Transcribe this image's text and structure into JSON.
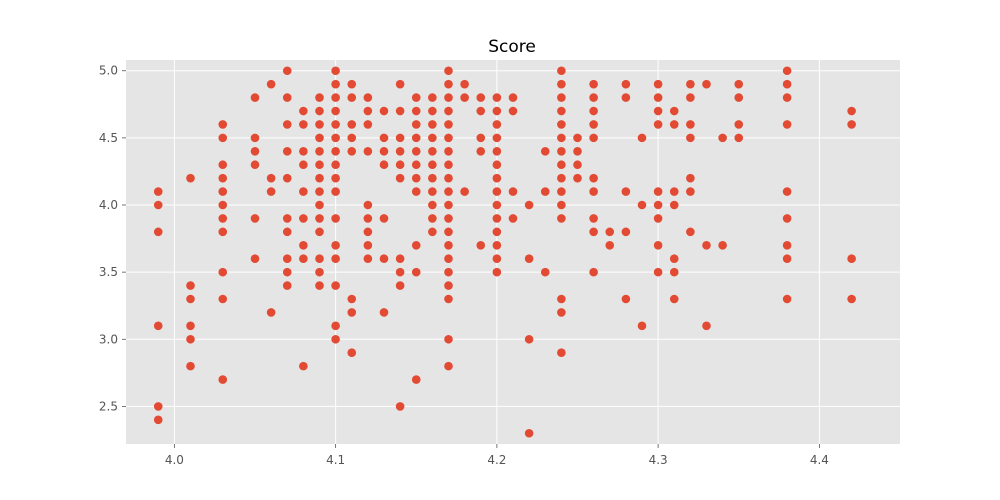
{
  "chart_data": {
    "type": "scatter",
    "title": "Score",
    "xlabel": "",
    "ylabel": "",
    "xlim": [
      3.97,
      4.45
    ],
    "ylim": [
      2.22,
      5.08
    ],
    "xticks": [
      4.0,
      4.1,
      4.2,
      4.3,
      4.4
    ],
    "xtick_labels": [
      "4.0",
      "4.1",
      "4.2",
      "4.3",
      "4.4"
    ],
    "yticks": [
      2.5,
      3.0,
      3.5,
      4.0,
      4.5,
      5.0
    ],
    "ytick_labels": [
      "2.5",
      "3.0",
      "3.5",
      "4.0",
      "4.5",
      "5.0"
    ],
    "grid": true,
    "style": "ggplot",
    "colors": {
      "marker": "#E24A33",
      "background": "#E5E5E5",
      "grid": "#FFFFFF"
    },
    "points": [
      [
        3.99,
        4.1
      ],
      [
        3.99,
        4.0
      ],
      [
        3.99,
        3.8
      ],
      [
        3.99,
        3.1
      ],
      [
        3.99,
        2.5
      ],
      [
        3.99,
        2.4
      ],
      [
        4.01,
        4.2
      ],
      [
        4.01,
        3.4
      ],
      [
        4.01,
        3.3
      ],
      [
        4.01,
        3.1
      ],
      [
        4.01,
        3.0
      ],
      [
        4.01,
        2.8
      ],
      [
        4.03,
        4.6
      ],
      [
        4.03,
        4.5
      ],
      [
        4.03,
        4.3
      ],
      [
        4.03,
        4.2
      ],
      [
        4.03,
        4.1
      ],
      [
        4.03,
        4.0
      ],
      [
        4.03,
        3.9
      ],
      [
        4.03,
        3.8
      ],
      [
        4.03,
        3.5
      ],
      [
        4.03,
        3.3
      ],
      [
        4.03,
        2.7
      ],
      [
        4.05,
        4.8
      ],
      [
        4.05,
        4.5
      ],
      [
        4.05,
        4.4
      ],
      [
        4.05,
        4.3
      ],
      [
        4.05,
        3.9
      ],
      [
        4.05,
        3.6
      ],
      [
        4.06,
        4.9
      ],
      [
        4.06,
        4.2
      ],
      [
        4.06,
        4.1
      ],
      [
        4.06,
        3.2
      ],
      [
        4.07,
        5.0
      ],
      [
        4.07,
        4.8
      ],
      [
        4.07,
        4.6
      ],
      [
        4.07,
        4.4
      ],
      [
        4.07,
        4.2
      ],
      [
        4.07,
        3.9
      ],
      [
        4.07,
        3.8
      ],
      [
        4.07,
        3.6
      ],
      [
        4.07,
        3.5
      ],
      [
        4.07,
        3.4
      ],
      [
        4.08,
        4.7
      ],
      [
        4.08,
        4.6
      ],
      [
        4.08,
        4.4
      ],
      [
        4.08,
        4.3
      ],
      [
        4.08,
        4.1
      ],
      [
        4.08,
        3.9
      ],
      [
        4.08,
        3.7
      ],
      [
        4.08,
        3.6
      ],
      [
        4.08,
        2.8
      ],
      [
        4.09,
        4.8
      ],
      [
        4.09,
        4.7
      ],
      [
        4.09,
        4.6
      ],
      [
        4.09,
        4.5
      ],
      [
        4.09,
        4.4
      ],
      [
        4.09,
        4.3
      ],
      [
        4.09,
        4.2
      ],
      [
        4.09,
        4.1
      ],
      [
        4.09,
        4.0
      ],
      [
        4.09,
        3.9
      ],
      [
        4.09,
        3.8
      ],
      [
        4.09,
        3.6
      ],
      [
        4.09,
        3.5
      ],
      [
        4.09,
        3.4
      ],
      [
        4.1,
        5.0
      ],
      [
        4.1,
        4.9
      ],
      [
        4.1,
        4.8
      ],
      [
        4.1,
        4.7
      ],
      [
        4.1,
        4.6
      ],
      [
        4.1,
        4.5
      ],
      [
        4.1,
        4.4
      ],
      [
        4.1,
        4.3
      ],
      [
        4.1,
        4.2
      ],
      [
        4.1,
        4.1
      ],
      [
        4.1,
        3.9
      ],
      [
        4.1,
        3.7
      ],
      [
        4.1,
        3.6
      ],
      [
        4.1,
        3.4
      ],
      [
        4.1,
        3.1
      ],
      [
        4.1,
        3.0
      ],
      [
        4.11,
        4.9
      ],
      [
        4.11,
        4.8
      ],
      [
        4.11,
        4.6
      ],
      [
        4.11,
        4.5
      ],
      [
        4.11,
        4.4
      ],
      [
        4.11,
        3.3
      ],
      [
        4.11,
        3.2
      ],
      [
        4.11,
        2.9
      ],
      [
        4.12,
        4.8
      ],
      [
        4.12,
        4.7
      ],
      [
        4.12,
        4.6
      ],
      [
        4.12,
        4.4
      ],
      [
        4.12,
        4.0
      ],
      [
        4.12,
        3.9
      ],
      [
        4.12,
        3.8
      ],
      [
        4.12,
        3.7
      ],
      [
        4.12,
        3.6
      ],
      [
        4.13,
        4.7
      ],
      [
        4.13,
        4.5
      ],
      [
        4.13,
        4.4
      ],
      [
        4.13,
        4.3
      ],
      [
        4.13,
        3.9
      ],
      [
        4.13,
        3.6
      ],
      [
        4.13,
        3.2
      ],
      [
        4.14,
        4.9
      ],
      [
        4.14,
        4.7
      ],
      [
        4.14,
        4.5
      ],
      [
        4.14,
        4.4
      ],
      [
        4.14,
        4.3
      ],
      [
        4.14,
        4.2
      ],
      [
        4.14,
        3.6
      ],
      [
        4.14,
        3.5
      ],
      [
        4.14,
        3.4
      ],
      [
        4.14,
        2.5
      ],
      [
        4.15,
        4.8
      ],
      [
        4.15,
        4.7
      ],
      [
        4.15,
        4.6
      ],
      [
        4.15,
        4.5
      ],
      [
        4.15,
        4.4
      ],
      [
        4.15,
        4.3
      ],
      [
        4.15,
        4.2
      ],
      [
        4.15,
        4.1
      ],
      [
        4.15,
        3.7
      ],
      [
        4.15,
        3.5
      ],
      [
        4.15,
        2.7
      ],
      [
        4.16,
        4.8
      ],
      [
        4.16,
        4.7
      ],
      [
        4.16,
        4.6
      ],
      [
        4.16,
        4.5
      ],
      [
        4.16,
        4.4
      ],
      [
        4.16,
        4.3
      ],
      [
        4.16,
        4.2
      ],
      [
        4.16,
        4.1
      ],
      [
        4.16,
        4.0
      ],
      [
        4.16,
        3.9
      ],
      [
        4.16,
        3.8
      ],
      [
        4.17,
        5.0
      ],
      [
        4.17,
        4.9
      ],
      [
        4.17,
        4.8
      ],
      [
        4.17,
        4.7
      ],
      [
        4.17,
        4.6
      ],
      [
        4.17,
        4.5
      ],
      [
        4.17,
        4.4
      ],
      [
        4.17,
        4.3
      ],
      [
        4.17,
        4.2
      ],
      [
        4.17,
        4.1
      ],
      [
        4.17,
        4.0
      ],
      [
        4.17,
        3.9
      ],
      [
        4.17,
        3.8
      ],
      [
        4.17,
        3.7
      ],
      [
        4.17,
        3.6
      ],
      [
        4.17,
        3.5
      ],
      [
        4.17,
        3.4
      ],
      [
        4.17,
        3.3
      ],
      [
        4.17,
        3.0
      ],
      [
        4.17,
        2.8
      ],
      [
        4.18,
        4.9
      ],
      [
        4.18,
        4.8
      ],
      [
        4.18,
        4.1
      ],
      [
        4.19,
        4.8
      ],
      [
        4.19,
        4.7
      ],
      [
        4.19,
        4.5
      ],
      [
        4.19,
        4.4
      ],
      [
        4.19,
        3.7
      ],
      [
        4.2,
        4.8
      ],
      [
        4.2,
        4.7
      ],
      [
        4.2,
        4.6
      ],
      [
        4.2,
        4.5
      ],
      [
        4.2,
        4.4
      ],
      [
        4.2,
        4.3
      ],
      [
        4.2,
        4.2
      ],
      [
        4.2,
        4.1
      ],
      [
        4.2,
        4.0
      ],
      [
        4.2,
        3.9
      ],
      [
        4.2,
        3.8
      ],
      [
        4.2,
        3.7
      ],
      [
        4.2,
        3.6
      ],
      [
        4.2,
        3.5
      ],
      [
        4.21,
        4.8
      ],
      [
        4.21,
        4.7
      ],
      [
        4.21,
        4.1
      ],
      [
        4.21,
        3.9
      ],
      [
        4.22,
        4.0
      ],
      [
        4.22,
        3.6
      ],
      [
        4.22,
        3.0
      ],
      [
        4.22,
        2.3
      ],
      [
        4.23,
        4.4
      ],
      [
        4.23,
        4.1
      ],
      [
        4.23,
        3.5
      ],
      [
        4.24,
        5.0
      ],
      [
        4.24,
        4.9
      ],
      [
        4.24,
        4.8
      ],
      [
        4.24,
        4.7
      ],
      [
        4.24,
        4.6
      ],
      [
        4.24,
        4.5
      ],
      [
        4.24,
        4.4
      ],
      [
        4.24,
        4.3
      ],
      [
        4.24,
        4.2
      ],
      [
        4.24,
        4.1
      ],
      [
        4.24,
        4.0
      ],
      [
        4.24,
        3.9
      ],
      [
        4.24,
        3.3
      ],
      [
        4.24,
        3.2
      ],
      [
        4.24,
        2.9
      ],
      [
        4.25,
        4.5
      ],
      [
        4.25,
        4.4
      ],
      [
        4.25,
        4.3
      ],
      [
        4.25,
        4.2
      ],
      [
        4.26,
        4.9
      ],
      [
        4.26,
        4.8
      ],
      [
        4.26,
        4.7
      ],
      [
        4.26,
        4.6
      ],
      [
        4.26,
        4.5
      ],
      [
        4.26,
        4.2
      ],
      [
        4.26,
        4.1
      ],
      [
        4.26,
        3.9
      ],
      [
        4.26,
        3.8
      ],
      [
        4.26,
        3.5
      ],
      [
        4.27,
        3.8
      ],
      [
        4.27,
        3.7
      ],
      [
        4.28,
        4.9
      ],
      [
        4.28,
        4.8
      ],
      [
        4.28,
        4.1
      ],
      [
        4.28,
        3.8
      ],
      [
        4.28,
        3.3
      ],
      [
        4.29,
        4.5
      ],
      [
        4.29,
        4.0
      ],
      [
        4.29,
        3.1
      ],
      [
        4.3,
        4.9
      ],
      [
        4.3,
        4.8
      ],
      [
        4.3,
        4.7
      ],
      [
        4.3,
        4.6
      ],
      [
        4.3,
        4.1
      ],
      [
        4.3,
        4.0
      ],
      [
        4.3,
        3.9
      ],
      [
        4.3,
        3.7
      ],
      [
        4.3,
        3.5
      ],
      [
        4.31,
        4.7
      ],
      [
        4.31,
        4.6
      ],
      [
        4.31,
        4.1
      ],
      [
        4.31,
        4.0
      ],
      [
        4.31,
        3.6
      ],
      [
        4.31,
        3.5
      ],
      [
        4.31,
        3.3
      ],
      [
        4.32,
        4.9
      ],
      [
        4.32,
        4.8
      ],
      [
        4.32,
        4.6
      ],
      [
        4.32,
        4.5
      ],
      [
        4.32,
        4.2
      ],
      [
        4.32,
        4.1
      ],
      [
        4.32,
        3.8
      ],
      [
        4.33,
        4.9
      ],
      [
        4.33,
        3.7
      ],
      [
        4.33,
        3.1
      ],
      [
        4.34,
        4.5
      ],
      [
        4.34,
        3.7
      ],
      [
        4.35,
        4.9
      ],
      [
        4.35,
        4.8
      ],
      [
        4.35,
        4.6
      ],
      [
        4.35,
        4.5
      ],
      [
        4.38,
        5.0
      ],
      [
        4.38,
        4.9
      ],
      [
        4.38,
        4.8
      ],
      [
        4.38,
        4.6
      ],
      [
        4.38,
        4.1
      ],
      [
        4.38,
        3.9
      ],
      [
        4.38,
        3.7
      ],
      [
        4.38,
        3.6
      ],
      [
        4.38,
        3.3
      ],
      [
        4.42,
        4.7
      ],
      [
        4.42,
        4.6
      ],
      [
        4.42,
        3.6
      ],
      [
        4.42,
        3.3
      ]
    ]
  }
}
